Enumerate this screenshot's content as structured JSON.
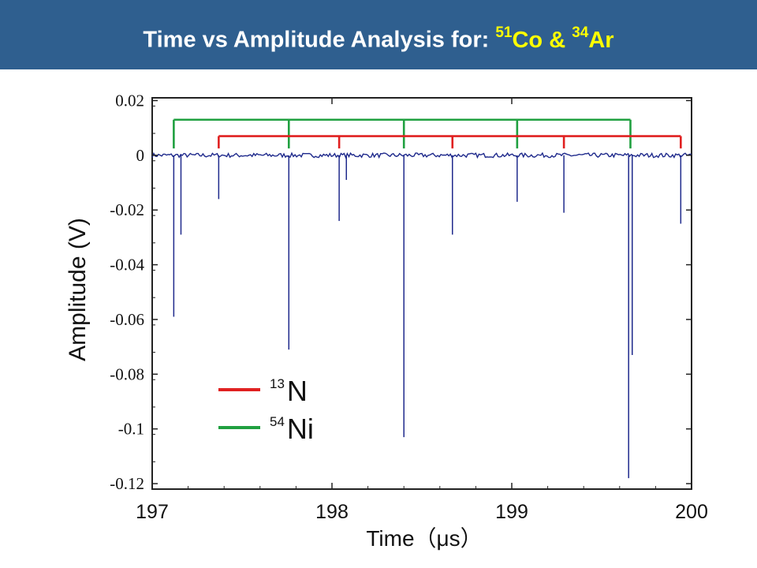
{
  "slide": {
    "title_prefix": "Time vs Amplitude Analysis for: ",
    "title_n1_mass": "51",
    "title_n1_sym": "Co",
    "title_sep": " & ",
    "title_n2_mass": "34",
    "title_n2_sym": "Ar",
    "accent_color": "#ffff00",
    "banner_color": "#2f5f8f"
  },
  "chart_data": {
    "type": "line",
    "xlabel": "Time（μs）",
    "ylabel": "Amplitude (V)",
    "xlim": [
      197,
      200
    ],
    "ylim": [
      -0.122,
      0.021
    ],
    "xticks": [
      "197",
      "198",
      "199",
      "200"
    ],
    "yticks": [
      "0.02",
      "0",
      "-0.02",
      "-0.04",
      "-0.06",
      "-0.08",
      "-0.1",
      "-0.12"
    ],
    "ytick_values": [
      0.02,
      0,
      -0.02,
      -0.04,
      -0.06,
      -0.08,
      -0.1,
      -0.12
    ],
    "xtick_values": [
      197,
      198,
      199,
      200
    ],
    "baseline": 0,
    "trace_color": "#1f2a8c",
    "grid": false,
    "legend_position": "lower-left",
    "series": [
      {
        "name": "13N",
        "mass": "13",
        "symbol": "N",
        "color": "#e02020",
        "bracket_level": 0.007,
        "peaks": [
          {
            "x": 197.37,
            "y": -0.016
          },
          {
            "x": 198.04,
            "y": -0.024
          },
          {
            "x": 198.08,
            "y": -0.009
          },
          {
            "x": 198.67,
            "y": -0.029
          },
          {
            "x": 199.29,
            "y": -0.021
          },
          {
            "x": 199.94,
            "y": -0.025
          }
        ]
      },
      {
        "name": "54Ni",
        "mass": "54",
        "symbol": "Ni",
        "color": "#20a040",
        "bracket_level": 0.013,
        "peaks": [
          {
            "x": 197.12,
            "y": -0.059
          },
          {
            "x": 197.16,
            "y": -0.029
          },
          {
            "x": 197.76,
            "y": -0.071
          },
          {
            "x": 198.4,
            "y": -0.103
          },
          {
            "x": 199.03,
            "y": -0.017
          },
          {
            "x": 199.65,
            "y": -0.118
          },
          {
            "x": 199.67,
            "y": -0.073
          }
        ]
      }
    ],
    "ni_bracket_ticks": [
      197.12,
      197.76,
      198.4,
      199.03,
      199.66
    ],
    "n_bracket_ticks": [
      197.37,
      198.04,
      198.67,
      199.29,
      199.94
    ]
  }
}
